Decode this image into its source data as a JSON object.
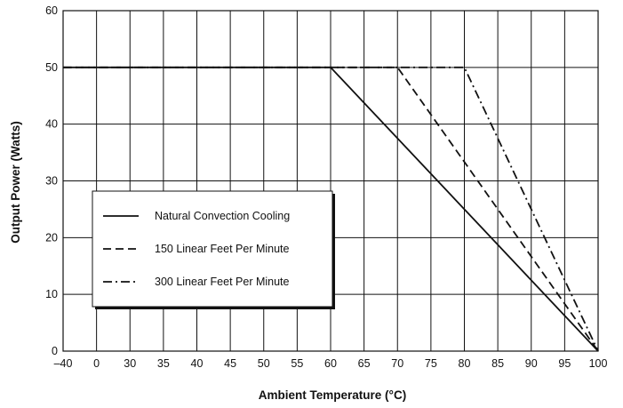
{
  "chart_data": {
    "type": "line",
    "title": "",
    "xlabel": "Ambient Temperature (°C)",
    "ylabel": "Output Power (Watts)",
    "x_ticks": [
      "–40",
      "0",
      "30",
      "35",
      "40",
      "45",
      "50",
      "55",
      "60",
      "65",
      "70",
      "75",
      "80",
      "85",
      "90",
      "95",
      "100"
    ],
    "y_ticks": [
      "0",
      "10",
      "20",
      "30",
      "40",
      "50",
      "60"
    ],
    "ylim": [
      0,
      60
    ],
    "grid": true,
    "legend_position": "lower-left",
    "series": [
      {
        "name": "Natural Convection Cooling",
        "style": "solid",
        "points": [
          [
            -40,
            50
          ],
          [
            60,
            50
          ],
          [
            100,
            0
          ]
        ]
      },
      {
        "name": "150 Linear Feet Per Minute",
        "style": "dashed",
        "points": [
          [
            -40,
            50
          ],
          [
            70,
            50
          ],
          [
            100,
            0
          ]
        ]
      },
      {
        "name": "300 Linear Feet Per Minute",
        "style": "dashdot",
        "points": [
          [
            -40,
            50
          ],
          [
            80,
            50
          ],
          [
            100,
            0
          ]
        ]
      }
    ],
    "colors": {
      "line": "#111111",
      "grid": "#111111",
      "background": "#ffffff"
    }
  }
}
